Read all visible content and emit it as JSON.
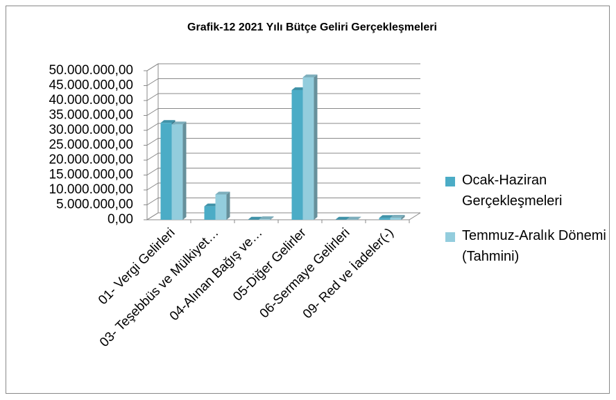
{
  "chart_data": {
    "type": "bar3d",
    "title": "Grafik-12 2021 Yılı Bütçe Geliri Gerçekleşmeleri",
    "categories": [
      "01- Vergi Gelirleri",
      "03- Teşebbüs ve Mülkiyet…",
      "04-Alınan Bağış ve…",
      "05-Diğer Gelirler",
      "06-Sermaye Gelirleri",
      "09- Red ve İadeler(-)"
    ],
    "series": [
      {
        "name": "Ocak-Haziran Gerçekleşmeleri",
        "color": "#4bacc6",
        "values": [
          32500000,
          4500000,
          50000,
          43500000,
          50000,
          600000
        ]
      },
      {
        "name": "Temmuz-Aralık Dönemi (Tahmini)",
        "color": "#93cddd",
        "values": [
          32000000,
          8500000,
          200000,
          47800000,
          100000,
          700000
        ]
      }
    ],
    "ylim": [
      0,
      50000000
    ],
    "yticks": [
      {
        "value": 0,
        "label": "0,00"
      },
      {
        "value": 5000000,
        "label": "5.000.000,00"
      },
      {
        "value": 10000000,
        "label": "10.000.000,00"
      },
      {
        "value": 15000000,
        "label": "15.000.000,00"
      },
      {
        "value": 20000000,
        "label": "20.000.000,00"
      },
      {
        "value": 25000000,
        "label": "25.000.000,00"
      },
      {
        "value": 30000000,
        "label": "30.000.000,00"
      },
      {
        "value": 35000000,
        "label": "35.000.000,00"
      },
      {
        "value": 40000000,
        "label": "40.000.000,00"
      },
      {
        "value": 45000000,
        "label": "45.000.000,00"
      },
      {
        "value": 50000000,
        "label": "50.000.000,00"
      }
    ],
    "grid": true,
    "legend": "right"
  }
}
